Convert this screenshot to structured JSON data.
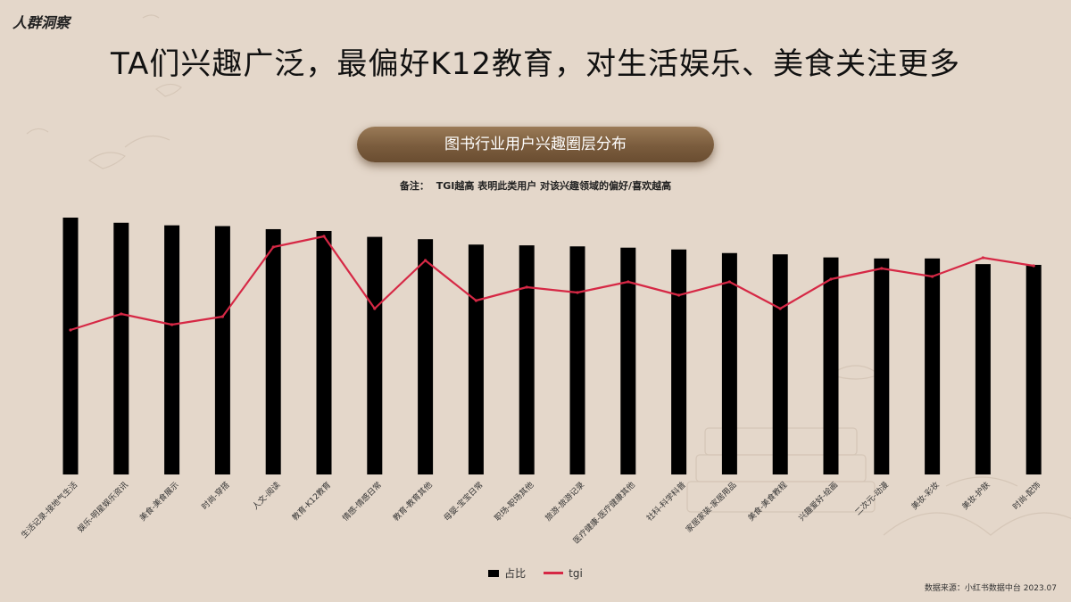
{
  "header": {
    "corner_label": "人群洞察",
    "title": "TA们兴趣广泛，最偏好K12教育，对生活娱乐、美食关注更多"
  },
  "chart_banner": "图书行业用户兴趣圈层分布",
  "note": {
    "label": "备注：",
    "text": "TGI越高 表明此类用户 对该兴趣领域的偏好/喜欢越高"
  },
  "legend": {
    "bar": "占比",
    "line": "tgi"
  },
  "source": "数据来源：小红书数据中台  2023.07",
  "chart_data": {
    "type": "bar",
    "categories": [
      "生活记录-接地气生活",
      "娱乐-明星娱乐资讯",
      "美食-美食展示",
      "时尚-穿搭",
      "人文-阅读",
      "教育-K12教育",
      "情感-情感日常",
      "教育-教育其他",
      "母婴-宝宝日常",
      "职场-职场其他",
      "旅游-旅游记录",
      "医疗健康-医疗健康其他",
      "社科-科学科普",
      "家居家装-家居用品",
      "美食-美食教程",
      "兴趣爱好-绘画",
      "二次元-动漫",
      "美妆-彩妆",
      "美妆-护肤",
      "时尚-配饰"
    ],
    "series": [
      {
        "name": "占比",
        "kind": "bar",
        "color": "#000000",
        "values": [
          100,
          98,
          97,
          96.7,
          95.5,
          94.8,
          92.5,
          91.6,
          89.5,
          89.2,
          88.8,
          88.3,
          87.6,
          86.2,
          85.7,
          84.5,
          84.1,
          84.1,
          81.9,
          81.6
        ]
      },
      {
        "name": "tgi",
        "kind": "line",
        "color": "#d62845",
        "values": [
          54,
          60,
          56,
          59,
          85,
          89,
          62,
          80,
          65,
          70,
          68,
          72,
          67,
          72,
          62,
          73,
          77,
          74,
          81,
          78
        ]
      }
    ],
    "ylim_bar": [
      0,
      100
    ],
    "ylim_line": [
      0,
      100
    ],
    "grid": false,
    "legend_position": "bottom-center"
  }
}
